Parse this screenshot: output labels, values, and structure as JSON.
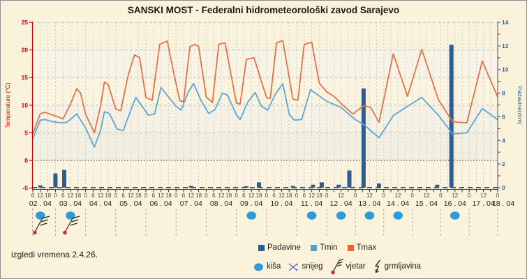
{
  "header": {
    "title": "SANSKI MOST - Federalni hidrometeorološki zavod Sarajevo"
  },
  "footer": {
    "text": "izgledi vremena 2.4.26."
  },
  "legend": {
    "series": [
      {
        "label": "Padavine",
        "color": "#2F5E8D"
      },
      {
        "label": "Tmin",
        "color": "#5FA5D2"
      },
      {
        "label": "Tmax",
        "color": "#E4714A"
      }
    ],
    "symbols": [
      {
        "label": "kiša",
        "icon": "rain-dot",
        "color": "#2C9BD6"
      },
      {
        "label": "snijeg",
        "icon": "snowflake",
        "color": "#5B66C2"
      },
      {
        "label": "vjetar",
        "icon": "wind-barb",
        "color": "#222222"
      },
      {
        "label": "grmljavina",
        "icon": "lightning",
        "color": "#333333"
      }
    ]
  },
  "chart_data": {
    "type": "line",
    "title": "SANSKI MOST - Federalni hidrometeorološki zavod Sarajevo",
    "y_left": {
      "title": "Temperature (°C)",
      "min": -5,
      "max": 25,
      "tick_step": 5,
      "color": "#C00000"
    },
    "y_right": {
      "title": "Padavine(mm)",
      "min": 0,
      "max": 14,
      "tick_step": 2,
      "color": "#336699"
    },
    "time_axis": {
      "start": "02.04 06:00",
      "end": "18.04 00:00",
      "tick_hours_first_section": 6,
      "tick_hours_second_section": 12,
      "section_break": "12.04 00:00",
      "end_label": "18 . 04"
    },
    "x_days": [
      {
        "label": "02 . 04",
        "rain": true,
        "wind": true
      },
      {
        "label": "03 . 04",
        "rain": true,
        "wind": true
      },
      {
        "label": "04 . 04",
        "rain": false,
        "wind": false
      },
      {
        "label": "05 . 04",
        "rain": false,
        "wind": false
      },
      {
        "label": "06 . 04",
        "rain": false,
        "wind": false
      },
      {
        "label": "07 . 04",
        "rain": false,
        "wind": false
      },
      {
        "label": "08 . 04",
        "rain": false,
        "wind": false
      },
      {
        "label": "09 . 04",
        "rain": true,
        "wind": false
      },
      {
        "label": "10 . 04",
        "rain": false,
        "wind": false
      },
      {
        "label": "11 . 04",
        "rain": true,
        "wind": false
      },
      {
        "label": "12 . 04",
        "rain": true,
        "wind": false
      },
      {
        "label": "13 . 04",
        "rain": true,
        "wind": false
      },
      {
        "label": "14 . 04",
        "rain": true,
        "wind": false
      },
      {
        "label": "15 . 04",
        "rain": false,
        "wind": false
      },
      {
        "label": "16 . 04",
        "rain": true,
        "wind": false
      },
      {
        "label": "17 . 04",
        "rain": false,
        "wind": false
      }
    ],
    "series": [
      {
        "name": "Tmax",
        "color": "#E4714A",
        "unit": "°C",
        "points_h_degC": [
          [
            6,
            4.8
          ],
          [
            12,
            8.5
          ],
          [
            16,
            8.7
          ],
          [
            21,
            8.3
          ],
          [
            27,
            7.8
          ],
          [
            30,
            7.5
          ],
          [
            36,
            10.2
          ],
          [
            41,
            13
          ],
          [
            44,
            12.2
          ],
          [
            48,
            8.4
          ],
          [
            55,
            5
          ],
          [
            60,
            10
          ],
          [
            63,
            14.2
          ],
          [
            66,
            13.7
          ],
          [
            72,
            9.3
          ],
          [
            76,
            9
          ],
          [
            82,
            15.5
          ],
          [
            87,
            19.1
          ],
          [
            91,
            18.6
          ],
          [
            96,
            11.4
          ],
          [
            101,
            10.9
          ],
          [
            107,
            21
          ],
          [
            113,
            21.6
          ],
          [
            118,
            16
          ],
          [
            123,
            10.8
          ],
          [
            126,
            10.6
          ],
          [
            131,
            20.6
          ],
          [
            135,
            21
          ],
          [
            138,
            20.6
          ],
          [
            144,
            11.5
          ],
          [
            149,
            10.5
          ],
          [
            154,
            21
          ],
          [
            159,
            21.3
          ],
          [
            168,
            10.4
          ],
          [
            171,
            10.2
          ],
          [
            176,
            18.3
          ],
          [
            182,
            18.6
          ],
          [
            192,
            11.4
          ],
          [
            195,
            11.2
          ],
          [
            200,
            21.3
          ],
          [
            205,
            21.7
          ],
          [
            213,
            11.1
          ],
          [
            217,
            10.9
          ],
          [
            222,
            21
          ],
          [
            228,
            21.4
          ],
          [
            234,
            14
          ],
          [
            240,
            12.4
          ],
          [
            246,
            11.6
          ],
          [
            252,
            10.3
          ],
          [
            262,
            8.4
          ],
          [
            271,
            9.9
          ],
          [
            277,
            9.6
          ],
          [
            284,
            6.9
          ],
          [
            296,
            19.3
          ],
          [
            308,
            11.6
          ],
          [
            320,
            20.1
          ],
          [
            334,
            11
          ],
          [
            346,
            7
          ],
          [
            358,
            6.8
          ],
          [
            371,
            18
          ],
          [
            384,
            11.5
          ]
        ]
      },
      {
        "name": "Tmin",
        "color": "#5FA5D2",
        "unit": "°C",
        "points_h_degC": [
          [
            6,
            3.9
          ],
          [
            12,
            7.3
          ],
          [
            16,
            7.4
          ],
          [
            22,
            7
          ],
          [
            28,
            6.8
          ],
          [
            33,
            6.9
          ],
          [
            41,
            8.4
          ],
          [
            48,
            5.9
          ],
          [
            55,
            2.4
          ],
          [
            60,
            5.5
          ],
          [
            63,
            8.8
          ],
          [
            67,
            8.5
          ],
          [
            73,
            5.7
          ],
          [
            78,
            5.4
          ],
          [
            83,
            8.5
          ],
          [
            88,
            11.4
          ],
          [
            94,
            9.5
          ],
          [
            98,
            8.2
          ],
          [
            103,
            8.4
          ],
          [
            108,
            13.2
          ],
          [
            114,
            11.5
          ],
          [
            120,
            9.8
          ],
          [
            124,
            9.1
          ],
          [
            130,
            12.5
          ],
          [
            134,
            13.9
          ],
          [
            140,
            10.8
          ],
          [
            146,
            8.5
          ],
          [
            151,
            9.2
          ],
          [
            157,
            12.2
          ],
          [
            161,
            11.8
          ],
          [
            168,
            8.3
          ],
          [
            171,
            7.4
          ],
          [
            177,
            10.5
          ],
          [
            183,
            12.3
          ],
          [
            188,
            9.8
          ],
          [
            193,
            9.1
          ],
          [
            199,
            12
          ],
          [
            205,
            13.9
          ],
          [
            210,
            8.4
          ],
          [
            214,
            7.3
          ],
          [
            220,
            7.4
          ],
          [
            227,
            12.8
          ],
          [
            232,
            12
          ],
          [
            240,
            10.7
          ],
          [
            252,
            9.6
          ],
          [
            264,
            7.4
          ],
          [
            271,
            6.5
          ],
          [
            284,
            4.1
          ],
          [
            296,
            8.1
          ],
          [
            308,
            9.8
          ],
          [
            320,
            11.4
          ],
          [
            334,
            8.2
          ],
          [
            346,
            4.8
          ],
          [
            358,
            5
          ],
          [
            371,
            9.4
          ],
          [
            384,
            7.4
          ]
        ]
      }
    ],
    "bars": {
      "name": "Padavine",
      "color": "#2F5E8D",
      "unit": "mm",
      "points_h_mm": [
        [
          12,
          0.2
        ],
        [
          24,
          1.2
        ],
        [
          31,
          1.5
        ],
        [
          132,
          0.15
        ],
        [
          176,
          0.12
        ],
        [
          186,
          0.45
        ],
        [
          213,
          0.15
        ],
        [
          229,
          0.25
        ],
        [
          236,
          0.45
        ],
        [
          250,
          0.25
        ],
        [
          259,
          1.45
        ],
        [
          271,
          8.4
        ],
        [
          284,
          0.35
        ],
        [
          333,
          0.25
        ],
        [
          345,
          12.1
        ]
      ]
    }
  }
}
